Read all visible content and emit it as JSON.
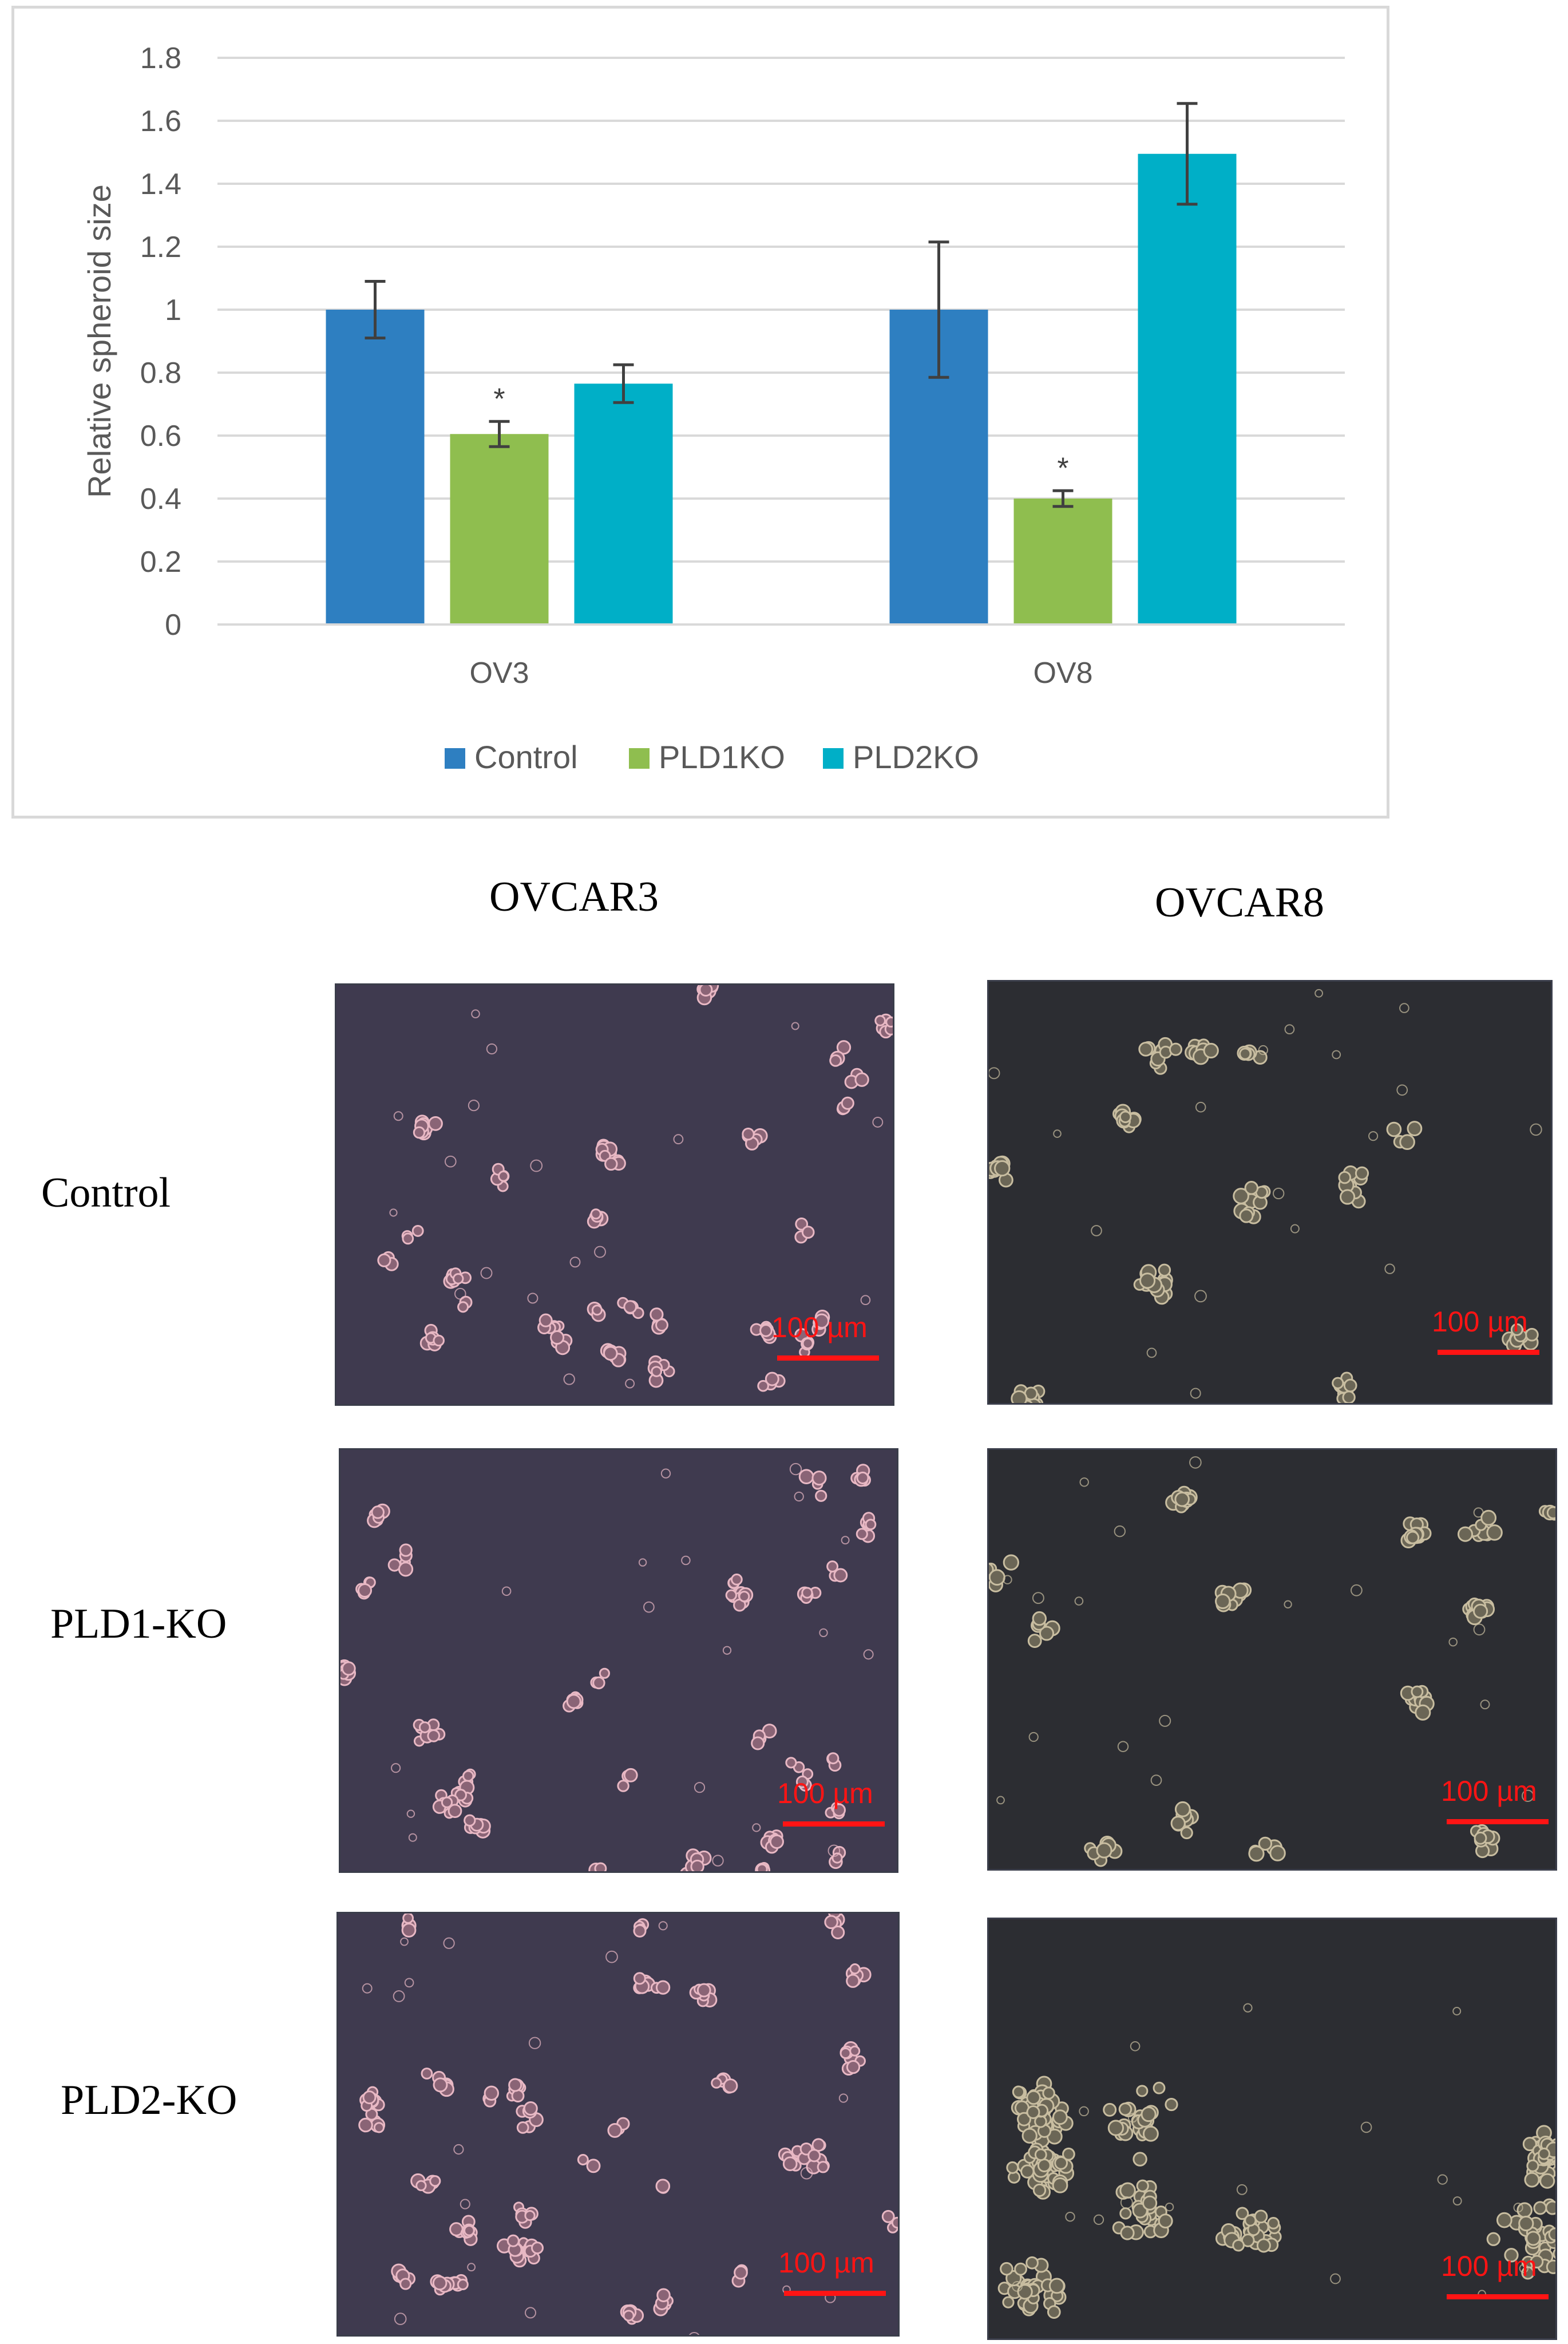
{
  "chart_data": {
    "type": "bar",
    "ylabel": "Relative spheroid size",
    "ylim": [
      0,
      1.8
    ],
    "yticks": [
      "0",
      "0.2",
      "0.4",
      "0.6",
      "0.8",
      "1",
      "1.2",
      "1.4",
      "1.6",
      "1.8"
    ],
    "grid": true,
    "legend_position": "bottom",
    "categories": [
      "OV3",
      "OV8"
    ],
    "series": [
      {
        "name": "Control",
        "color": "#2e7fc1",
        "values": [
          1.0,
          1.0
        ],
        "errors": [
          0.09,
          0.215
        ]
      },
      {
        "name": "PLD1KO",
        "color": "#8fbe4f",
        "values": [
          0.605,
          0.4
        ],
        "errors": [
          0.04,
          0.025
        ]
      },
      {
        "name": "PLD2KO",
        "color": "#00afc7",
        "values": [
          0.765,
          1.495
        ],
        "errors": [
          0.06,
          0.16
        ]
      }
    ],
    "annotations": [
      {
        "series": "PLD1KO",
        "category": "OV3",
        "text": "*"
      },
      {
        "series": "PLD1KO",
        "category": "OV8",
        "text": "*"
      }
    ]
  },
  "micrographs": {
    "columns": [
      "OVCAR3",
      "OVCAR8"
    ],
    "rows": [
      "Control",
      "PLD1-KO",
      "PLD2-KO"
    ],
    "scale_bar_label": "100 µm",
    "background_colors": [
      "#3f3a4f",
      "#2c2d32"
    ]
  }
}
